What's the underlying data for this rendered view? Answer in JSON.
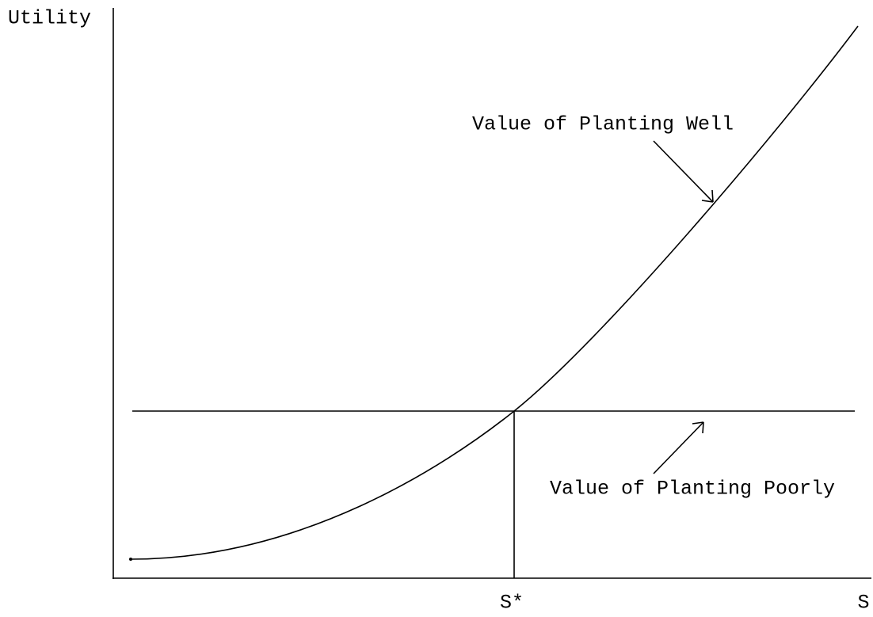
{
  "axes": {
    "y_label": "Utility",
    "x_label": "S",
    "x_marker": "S*"
  },
  "annotations": {
    "upper_curve": "Value of Planting Well",
    "lower_line": "Value of Planting Poorly"
  }
}
